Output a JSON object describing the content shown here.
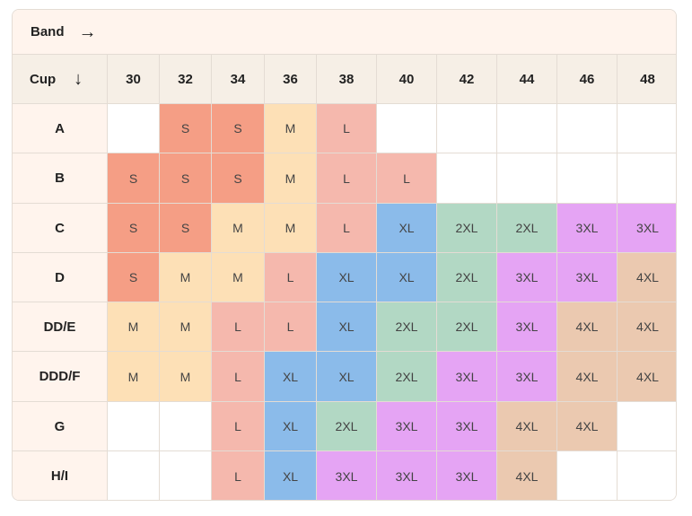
{
  "band_label": "Band",
  "band_arrow": "→",
  "cup_label": "Cup",
  "cup_arrow": "↓",
  "bands": [
    "30",
    "32",
    "34",
    "36",
    "38",
    "40",
    "42",
    "44",
    "46",
    "48"
  ],
  "size_colors": {
    "S": "#f59e85",
    "M": "#fde0b6",
    "L": "#f5b8ad",
    "XL": "#8bbbea",
    "2XL": "#b2d8c4",
    "3XL": "#e5a4f4",
    "4XL": "#ebc9b0",
    "": "#ffffff"
  },
  "rows": [
    {
      "cup": "A",
      "sizes": [
        "",
        "S",
        "S",
        "M",
        "L",
        "",
        "",
        "",
        "",
        ""
      ]
    },
    {
      "cup": "B",
      "sizes": [
        "S",
        "S",
        "S",
        "M",
        "L",
        "L",
        "",
        "",
        "",
        ""
      ]
    },
    {
      "cup": "C",
      "sizes": [
        "S",
        "S",
        "M",
        "M",
        "L",
        "XL",
        "2XL",
        "2XL",
        "3XL",
        "3XL"
      ]
    },
    {
      "cup": "D",
      "sizes": [
        "S",
        "M",
        "M",
        "L",
        "XL",
        "XL",
        "2XL",
        "3XL",
        "3XL",
        "4XL"
      ]
    },
    {
      "cup": "DD/E",
      "sizes": [
        "M",
        "M",
        "L",
        "L",
        "XL",
        "2XL",
        "2XL",
        "3XL",
        "4XL",
        "4XL"
      ]
    },
    {
      "cup": "DDD/F",
      "sizes": [
        "M",
        "M",
        "L",
        "XL",
        "XL",
        "2XL",
        "3XL",
        "3XL",
        "4XL",
        "4XL"
      ]
    },
    {
      "cup": "G",
      "sizes": [
        "",
        "",
        "L",
        "XL",
        "2XL",
        "3XL",
        "3XL",
        "4XL",
        "4XL",
        ""
      ]
    },
    {
      "cup": "H/I",
      "sizes": [
        "",
        "",
        "L",
        "XL",
        "3XL",
        "3XL",
        "3XL",
        "4XL",
        "",
        ""
      ]
    }
  ]
}
